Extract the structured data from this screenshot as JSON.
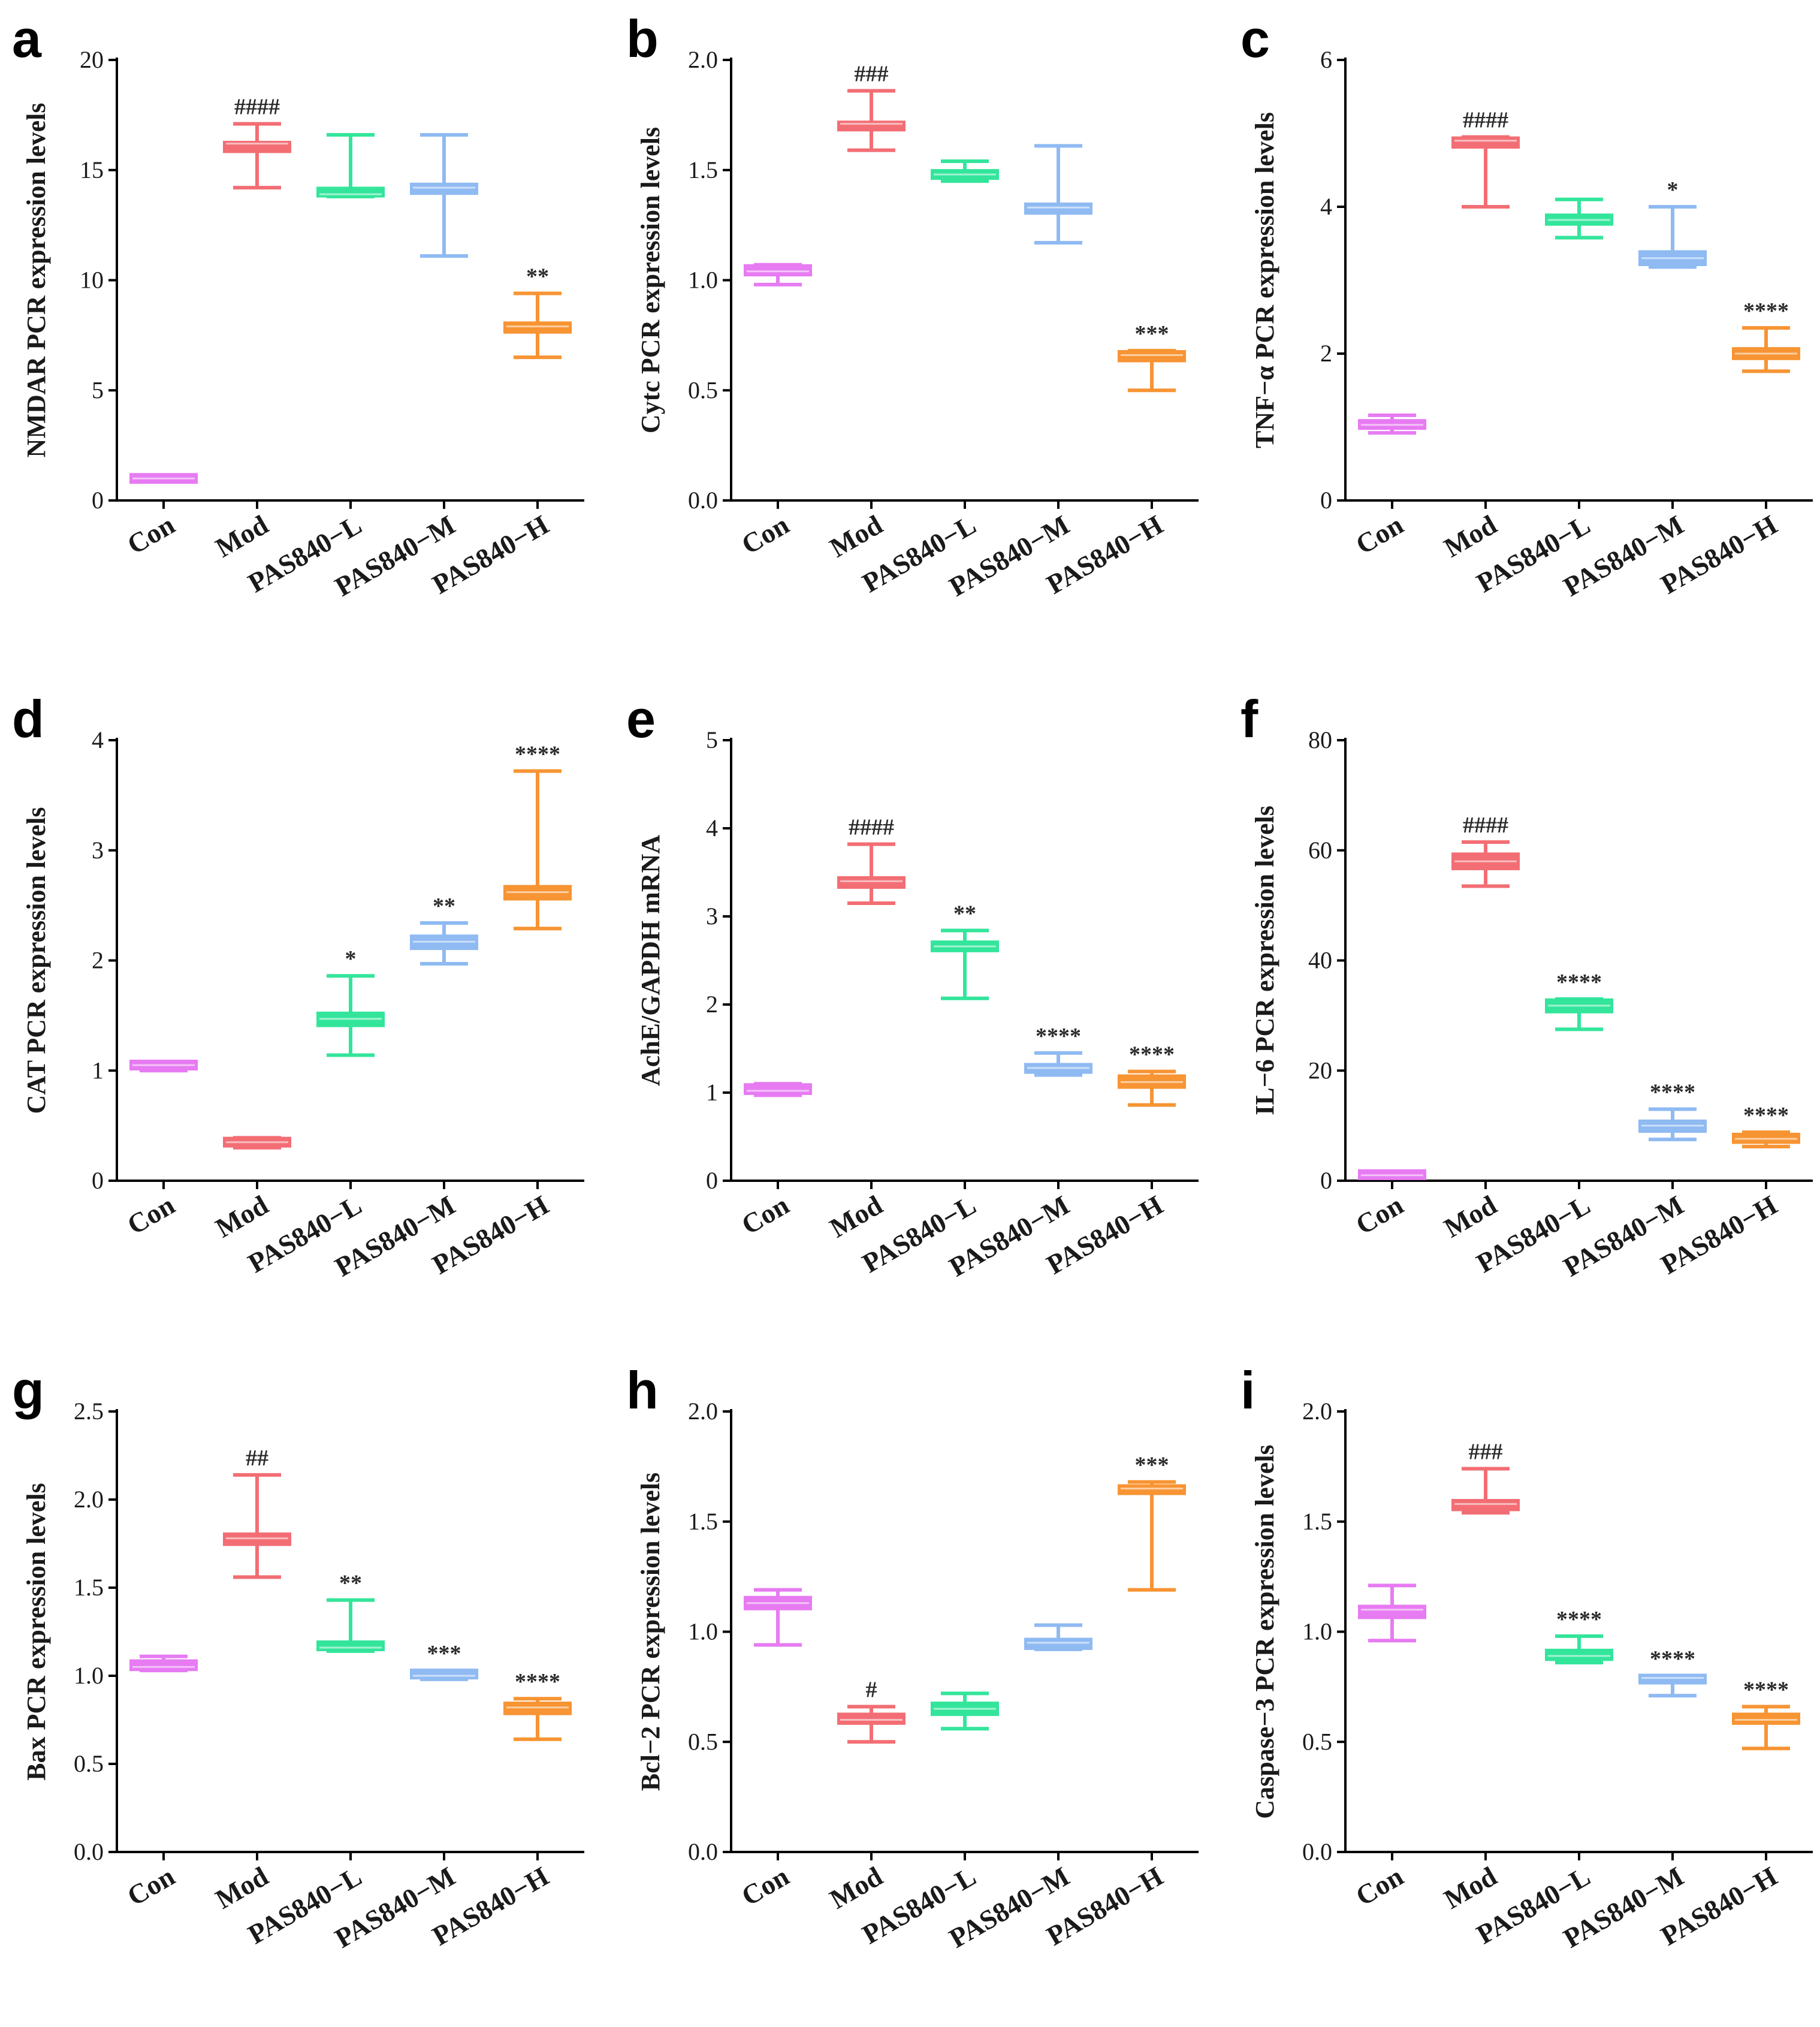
{
  "figure": {
    "categories": [
      "Con",
      "Mod",
      "PAS840−L",
      "PAS840−M",
      "PAS840−H"
    ],
    "colors": [
      "#e77bf2",
      "#f26e74",
      "#33e59b",
      "#8fbaf2",
      "#f79433"
    ]
  },
  "chart_data": [
    {
      "panel": "a",
      "type": "box",
      "ylabel": "NMDAR PCR expression levels",
      "ylim": [
        0,
        20
      ],
      "yticks": [
        0,
        5,
        10,
        15,
        20
      ],
      "yticklabels": [
        "0",
        "5",
        "10",
        "15",
        "20"
      ],
      "series": [
        {
          "category": "Con",
          "min": 0.9,
          "q1": 0.9,
          "median": 1.0,
          "q3": 1.1,
          "max": 1.1,
          "annotation": ""
        },
        {
          "category": "Mod",
          "min": 14.2,
          "q1": 15.8,
          "median": 16.2,
          "q3": 16.3,
          "max": 17.1,
          "annotation": "####"
        },
        {
          "category": "PAS840−L",
          "min": 13.8,
          "q1": 13.8,
          "median": 13.9,
          "q3": 14.2,
          "max": 16.6,
          "annotation": ""
        },
        {
          "category": "PAS840−M",
          "min": 11.1,
          "q1": 13.9,
          "median": 14.2,
          "q3": 14.4,
          "max": 16.6,
          "annotation": ""
        },
        {
          "category": "PAS840−H",
          "min": 6.5,
          "q1": 7.6,
          "median": 7.9,
          "q3": 8.1,
          "max": 9.4,
          "annotation": "**"
        }
      ]
    },
    {
      "panel": "b",
      "type": "box",
      "ylabel": "Cytc PCR expression levels",
      "ylim": [
        0,
        2.0
      ],
      "yticks": [
        0,
        0.5,
        1.0,
        1.5,
        2.0
      ],
      "yticklabels": [
        "0.0",
        "0.5",
        "1.0",
        "1.5",
        "2.0"
      ],
      "series": [
        {
          "category": "Con",
          "min": 0.98,
          "q1": 1.02,
          "median": 1.04,
          "q3": 1.07,
          "max": 1.07,
          "annotation": ""
        },
        {
          "category": "Mod",
          "min": 1.59,
          "q1": 1.68,
          "median": 1.71,
          "q3": 1.72,
          "max": 1.86,
          "annotation": "###"
        },
        {
          "category": "PAS840−L",
          "min": 1.45,
          "q1": 1.46,
          "median": 1.48,
          "q3": 1.5,
          "max": 1.54,
          "annotation": ""
        },
        {
          "category": "PAS840−M",
          "min": 1.17,
          "q1": 1.3,
          "median": 1.33,
          "q3": 1.35,
          "max": 1.61,
          "annotation": ""
        },
        {
          "category": "PAS840−H",
          "min": 0.5,
          "q1": 0.63,
          "median": 0.66,
          "q3": 0.68,
          "max": 0.68,
          "annotation": "***"
        }
      ]
    },
    {
      "panel": "c",
      "type": "box",
      "ylabel": "TNF−α PCR expression levels",
      "ylim": [
        0,
        6
      ],
      "yticks": [
        0,
        2,
        4,
        6
      ],
      "yticklabels": [
        "0",
        "2",
        "4",
        "6"
      ],
      "series": [
        {
          "category": "Con",
          "min": 0.92,
          "q1": 0.97,
          "median": 1.03,
          "q3": 1.1,
          "max": 1.16,
          "annotation": ""
        },
        {
          "category": "Mod",
          "min": 4.0,
          "q1": 4.8,
          "median": 4.9,
          "q3": 4.95,
          "max": 4.95,
          "annotation": "####"
        },
        {
          "category": "PAS840−L",
          "min": 3.58,
          "q1": 3.75,
          "median": 3.82,
          "q3": 3.9,
          "max": 4.1,
          "annotation": ""
        },
        {
          "category": "PAS840−M",
          "min": 3.18,
          "q1": 3.2,
          "median": 3.3,
          "q3": 3.4,
          "max": 4.0,
          "annotation": "*"
        },
        {
          "category": "PAS840−H",
          "min": 1.76,
          "q1": 1.92,
          "median": 2.0,
          "q3": 2.08,
          "max": 2.35,
          "annotation": "****"
        }
      ]
    },
    {
      "panel": "d",
      "type": "box",
      "ylabel": "CAT PCR expression levels",
      "ylim": [
        0,
        4
      ],
      "yticks": [
        0,
        1,
        2,
        3,
        4
      ],
      "yticklabels": [
        "0",
        "1",
        "2",
        "3",
        "4"
      ],
      "series": [
        {
          "category": "Con",
          "min": 1.0,
          "q1": 1.02,
          "median": 1.05,
          "q3": 1.08,
          "max": 1.08,
          "annotation": ""
        },
        {
          "category": "Mod",
          "min": 0.3,
          "q1": 0.31,
          "median": 0.35,
          "q3": 0.39,
          "max": 0.39,
          "annotation": ""
        },
        {
          "category": "PAS840−L",
          "min": 1.14,
          "q1": 1.4,
          "median": 1.47,
          "q3": 1.53,
          "max": 1.86,
          "annotation": "*"
        },
        {
          "category": "PAS840−M",
          "min": 1.97,
          "q1": 2.1,
          "median": 2.17,
          "q3": 2.23,
          "max": 2.34,
          "annotation": "**"
        },
        {
          "category": "PAS840−H",
          "min": 2.29,
          "q1": 2.55,
          "median": 2.62,
          "q3": 2.68,
          "max": 3.72,
          "annotation": "****"
        }
      ]
    },
    {
      "panel": "e",
      "type": "box",
      "ylabel": "AchE/GAPDH  mRNA",
      "ylim": [
        0,
        5
      ],
      "yticks": [
        0,
        1,
        2,
        3,
        4,
        5
      ],
      "yticklabels": [
        "0",
        "1",
        "2",
        "3",
        "4",
        "5"
      ],
      "series": [
        {
          "category": "Con",
          "min": 0.97,
          "q1": 0.98,
          "median": 1.02,
          "q3": 1.1,
          "max": 1.1,
          "annotation": ""
        },
        {
          "category": "Mod",
          "min": 3.15,
          "q1": 3.32,
          "median": 3.4,
          "q3": 3.45,
          "max": 3.82,
          "annotation": "####"
        },
        {
          "category": "PAS840−L",
          "min": 2.07,
          "q1": 2.6,
          "median": 2.66,
          "q3": 2.72,
          "max": 2.84,
          "annotation": "**"
        },
        {
          "category": "PAS840−M",
          "min": 1.2,
          "q1": 1.22,
          "median": 1.28,
          "q3": 1.33,
          "max": 1.45,
          "annotation": "****"
        },
        {
          "category": "PAS840−H",
          "min": 0.86,
          "q1": 1.05,
          "median": 1.12,
          "q3": 1.2,
          "max": 1.24,
          "annotation": "****"
        }
      ]
    },
    {
      "panel": "f",
      "type": "box",
      "ylabel": "IL−6 PCR expression levels",
      "ylim": [
        0,
        80
      ],
      "yticks": [
        0,
        20,
        40,
        60,
        80
      ],
      "yticklabels": [
        "0",
        "20",
        "40",
        "60",
        "80"
      ],
      "series": [
        {
          "category": "Con",
          "min": 0.6,
          "q1": 0.8,
          "median": 1.0,
          "q3": 1.4,
          "max": 1.4,
          "annotation": ""
        },
        {
          "category": "Mod",
          "min": 53.5,
          "q1": 56.5,
          "median": 58.0,
          "q3": 59.5,
          "max": 61.5,
          "annotation": "####"
        },
        {
          "category": "PAS840−L",
          "min": 27.5,
          "q1": 30.5,
          "median": 31.8,
          "q3": 33.0,
          "max": 33.0,
          "annotation": "****"
        },
        {
          "category": "PAS840−M",
          "min": 7.5,
          "q1": 8.8,
          "median": 10.0,
          "q3": 11.0,
          "max": 13.0,
          "annotation": "****"
        },
        {
          "category": "PAS840−H",
          "min": 6.2,
          "q1": 6.8,
          "median": 7.6,
          "q3": 8.6,
          "max": 8.8,
          "annotation": "****"
        }
      ]
    },
    {
      "panel": "g",
      "type": "box",
      "ylabel": "Bax PCR expression levels",
      "ylim": [
        0,
        2.5
      ],
      "yticks": [
        0,
        0.5,
        1.0,
        1.5,
        2.0,
        2.5
      ],
      "yticklabels": [
        "0.0",
        "0.5",
        "1.0",
        "1.5",
        "2.0",
        "2.5"
      ],
      "series": [
        {
          "category": "Con",
          "min": 1.03,
          "q1": 1.03,
          "median": 1.05,
          "q3": 1.09,
          "max": 1.11,
          "annotation": ""
        },
        {
          "category": "Mod",
          "min": 1.56,
          "q1": 1.74,
          "median": 1.78,
          "q3": 1.81,
          "max": 2.14,
          "annotation": "##"
        },
        {
          "category": "PAS840−L",
          "min": 1.14,
          "q1": 1.15,
          "median": 1.16,
          "q3": 1.19,
          "max": 1.43,
          "annotation": "**"
        },
        {
          "category": "PAS840−M",
          "min": 0.98,
          "q1": 0.99,
          "median": 1.0,
          "q3": 1.03,
          "max": 1.03,
          "annotation": "***"
        },
        {
          "category": "PAS840−H",
          "min": 0.64,
          "q1": 0.78,
          "median": 0.82,
          "q3": 0.85,
          "max": 0.87,
          "annotation": "****"
        }
      ]
    },
    {
      "panel": "h",
      "type": "box",
      "ylabel": "Bcl−2 PCR expression levels",
      "ylim": [
        0,
        2.0
      ],
      "yticks": [
        0,
        0.5,
        1.0,
        1.5,
        2.0
      ],
      "yticklabels": [
        "0.0",
        "0.5",
        "1.0",
        "1.5",
        "2.0"
      ],
      "series": [
        {
          "category": "Con",
          "min": 0.94,
          "q1": 1.1,
          "median": 1.13,
          "q3": 1.16,
          "max": 1.19,
          "annotation": ""
        },
        {
          "category": "Mod",
          "min": 0.5,
          "q1": 0.58,
          "median": 0.6,
          "q3": 0.63,
          "max": 0.66,
          "annotation": "#"
        },
        {
          "category": "PAS840−L",
          "min": 0.56,
          "q1": 0.62,
          "median": 0.65,
          "q3": 0.68,
          "max": 0.72,
          "annotation": ""
        },
        {
          "category": "PAS840−M",
          "min": 0.92,
          "q1": 0.92,
          "median": 0.95,
          "q3": 0.97,
          "max": 1.03,
          "annotation": ""
        },
        {
          "category": "PAS840−H",
          "min": 1.19,
          "q1": 1.63,
          "median": 1.65,
          "q3": 1.66,
          "max": 1.68,
          "annotation": "***"
        }
      ]
    },
    {
      "panel": "i",
      "type": "box",
      "ylabel": "Caspase−3 PCR expression levels",
      "ylim": [
        0,
        2.0
      ],
      "yticks": [
        0,
        0.5,
        1.0,
        1.5,
        2.0
      ],
      "yticklabels": [
        "0.0",
        "0.5",
        "1.0",
        "1.5",
        "2.0"
      ],
      "series": [
        {
          "category": "Con",
          "min": 0.96,
          "q1": 1.06,
          "median": 1.1,
          "q3": 1.12,
          "max": 1.21,
          "annotation": ""
        },
        {
          "category": "Mod",
          "min": 1.54,
          "q1": 1.55,
          "median": 1.58,
          "q3": 1.6,
          "max": 1.74,
          "annotation": "###"
        },
        {
          "category": "PAS840−L",
          "min": 0.86,
          "q1": 0.87,
          "median": 0.89,
          "q3": 0.92,
          "max": 0.98,
          "annotation": "****"
        },
        {
          "category": "PAS840−M",
          "min": 0.71,
          "q1": 0.77,
          "median": 0.79,
          "q3": 0.8,
          "max": 0.8,
          "annotation": "****"
        },
        {
          "category": "PAS840−H",
          "min": 0.47,
          "q1": 0.58,
          "median": 0.6,
          "q3": 0.63,
          "max": 0.66,
          "annotation": "****"
        }
      ]
    }
  ]
}
